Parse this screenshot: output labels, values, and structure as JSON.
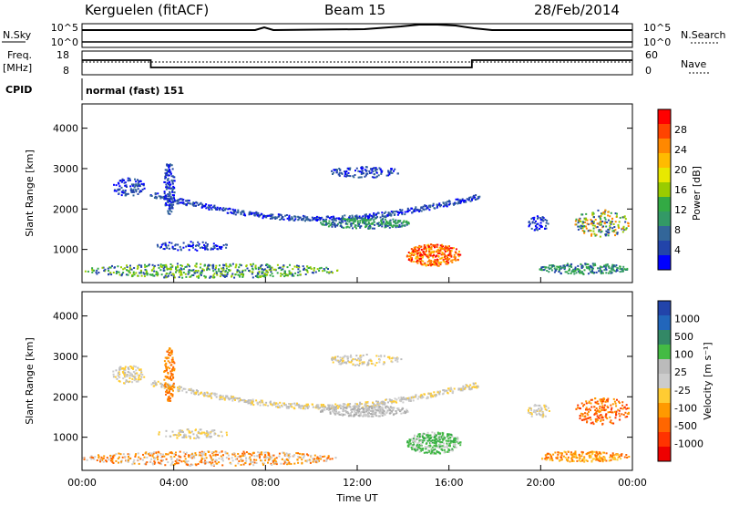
{
  "header": {
    "station": "Kerguelen (fitACF)",
    "beam": "Beam 15",
    "date": "28/Feb/2014"
  },
  "strip_labels": {
    "nsky": "N.Sky",
    "nsearch": "N.Search",
    "freq": "Freq.",
    "freq_unit": "[MHz]",
    "nave": "Nave",
    "cpid": "CPID",
    "cpid_value": "normal (fast) 151"
  },
  "strip_ticks": {
    "noise_left": [
      "10^5",
      "10^0"
    ],
    "noise_right": [
      "10^5",
      "10^0"
    ],
    "freq_left": [
      "18",
      "8"
    ],
    "nave_right": [
      "60",
      "0"
    ]
  },
  "freq_data": {
    "segments_hours": [
      [
        0,
        3,
        "high"
      ],
      [
        3,
        17,
        "low"
      ],
      [
        17,
        24,
        "high"
      ]
    ]
  },
  "panels": {
    "power": {
      "ylabel": "Slant Range [km]",
      "cbar_label": "Power [dB]",
      "cbar_ticks": [
        "28",
        "24",
        "20",
        "16",
        "12",
        "8",
        "4"
      ],
      "cbar_colors": [
        "#ff0000",
        "#ff4400",
        "#ff8800",
        "#ffbb00",
        "#e8e800",
        "#99cc00",
        "#33aa44",
        "#339966",
        "#336699",
        "#2244aa",
        "#0000ff"
      ]
    },
    "velocity": {
      "ylabel": "Slant Range [km]",
      "cbar_label": "Velocity [m s⁻¹]",
      "cbar_ticks": [
        "1000",
        "500",
        "100",
        "25",
        "-25",
        "-100",
        "-500",
        "-1000"
      ],
      "cbar_colors": [
        "#2244aa",
        "#2266bb",
        "#338866",
        "#44bb44",
        "#bbbbbb",
        "#cccccc",
        "#ffcc33",
        "#ff9900",
        "#ff6600",
        "#ff3300",
        "#ee0000"
      ]
    }
  },
  "chart_data": {
    "type": "heatmap",
    "xlabel": "Time UT",
    "x_ticks": [
      "00:00",
      "04:00",
      "08:00",
      "12:00",
      "16:00",
      "20:00",
      "00:00"
    ],
    "xlim_hours": [
      0,
      24
    ],
    "ylim_km": [
      180,
      4600
    ],
    "y_ticks": [
      "1000",
      "2000",
      "3000",
      "4000"
    ],
    "y_tick_values": [
      1000,
      2000,
      3000,
      4000
    ]
  }
}
